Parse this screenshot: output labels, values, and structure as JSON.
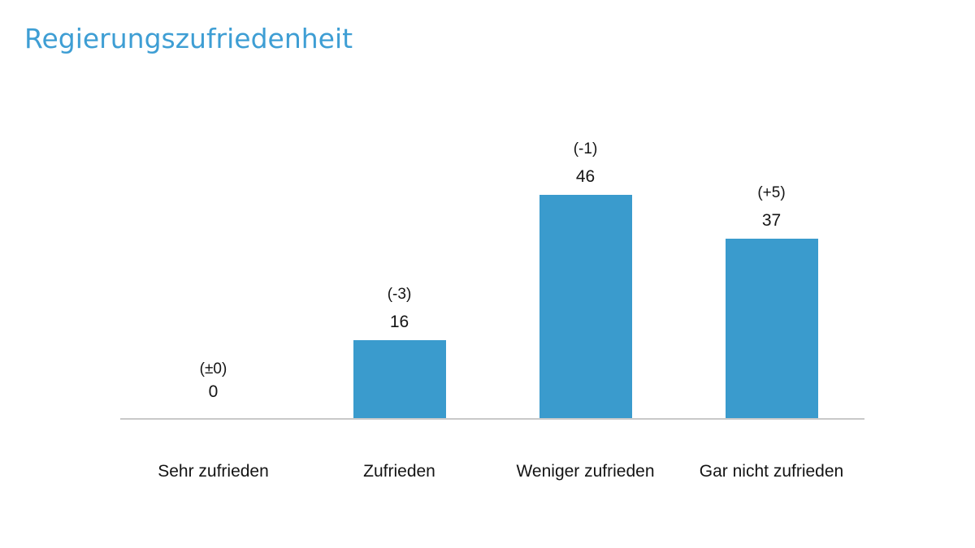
{
  "header": {
    "title": "Regierungszufriedenheit",
    "title_color": "#3e9ed4"
  },
  "chart_data": {
    "type": "bar",
    "title": "Regierungszufriedenheit",
    "categories": [
      "Sehr zufrieden",
      "Zufrieden",
      "Weniger zufrieden",
      "Gar nicht zufrieden"
    ],
    "values": [
      0,
      16,
      46,
      37
    ],
    "change_labels": [
      "(±0)",
      "(-3)",
      "(-1)",
      "(+5)"
    ],
    "value_labels_shown": true,
    "bar_color": "#3a9bcd",
    "axis_line_color": "#c9c9c9",
    "label_color": "#141414",
    "ylim": [
      0,
      50
    ],
    "grid": false,
    "legend_position": "none",
    "xlabel": "",
    "ylabel": ""
  }
}
